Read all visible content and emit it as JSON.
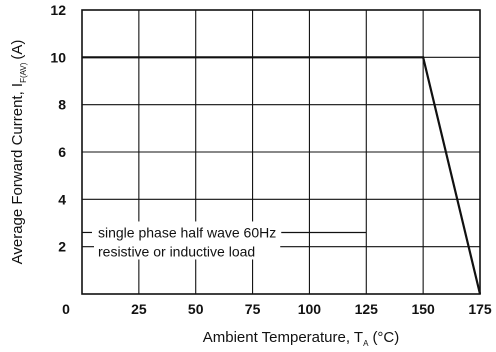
{
  "chart_data": {
    "type": "line",
    "title": "",
    "xlabel": {
      "main": "Ambient Temperature, T",
      "sub": "A",
      "unit": "(°C)"
    },
    "ylabel": {
      "main": "Average Forward Current, I",
      "sub": "F(AV)",
      "unit": "(A)"
    },
    "xlim": [
      0,
      175
    ],
    "ylim": [
      0,
      12
    ],
    "xticks": [
      0,
      25,
      50,
      75,
      100,
      125,
      150,
      175
    ],
    "yticks": [
      0,
      2,
      4,
      6,
      8,
      10,
      12
    ],
    "grid": true,
    "series": [
      {
        "name": "",
        "x": [
          0,
          150,
          175
        ],
        "y": [
          10,
          10,
          0
        ]
      }
    ],
    "annotation": {
      "lines": [
        "single phase half wave 60Hz",
        "resistive or inductive load"
      ],
      "leader_y": 2.6
    }
  }
}
